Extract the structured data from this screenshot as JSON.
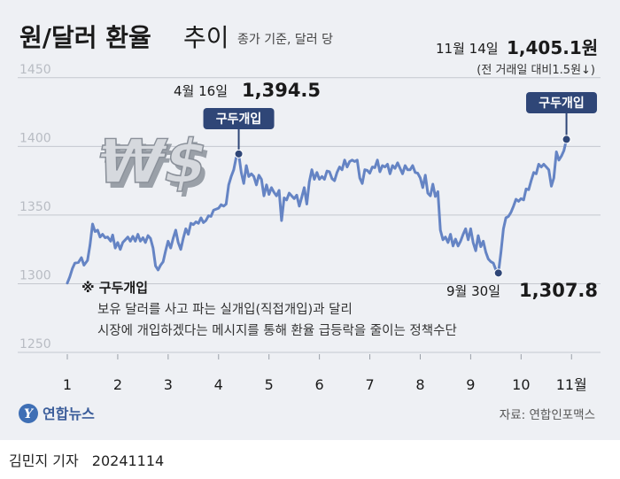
{
  "header": {
    "title": "원/달러 환율",
    "title_light": "추이",
    "subtitle": "종가 기준, 달러 당"
  },
  "chart_data": {
    "type": "line",
    "unit_note": "종가 기준, 달러 당",
    "ylim": [
      1250,
      1455
    ],
    "yticks": [
      1250,
      1300,
      1350,
      1400,
      1450
    ],
    "xticks": [
      {
        "label": "1",
        "x": 1
      },
      {
        "label": "2",
        "x": 2
      },
      {
        "label": "3",
        "x": 3
      },
      {
        "label": "4",
        "x": 4
      },
      {
        "label": "5",
        "x": 5
      },
      {
        "label": "6",
        "x": 6
      },
      {
        "label": "7",
        "x": 7
      },
      {
        "label": "8",
        "x": 8
      },
      {
        "label": "9",
        "x": 9
      },
      {
        "label": "10",
        "x": 10
      },
      {
        "label": "11월",
        "x": 11
      }
    ],
    "xlim": [
      1,
      11.47
    ],
    "grid": true,
    "series": [
      {
        "color": "#6584c4",
        "points": [
          [
            1.0,
            1300.5
          ],
          [
            1.05,
            1305.0
          ],
          [
            1.1,
            1311.0
          ],
          [
            1.15,
            1315.0
          ],
          [
            1.22,
            1315.5
          ],
          [
            1.28,
            1319.0
          ],
          [
            1.33,
            1313.5
          ],
          [
            1.4,
            1317.0
          ],
          [
            1.45,
            1328.0
          ],
          [
            1.5,
            1343.5
          ],
          [
            1.55,
            1338.0
          ],
          [
            1.6,
            1339.0
          ],
          [
            1.65,
            1334.0
          ],
          [
            1.7,
            1336.0
          ],
          [
            1.75,
            1333.5
          ],
          [
            1.8,
            1334.0
          ],
          [
            1.86,
            1331.0
          ],
          [
            1.9,
            1335.5
          ],
          [
            1.95,
            1326.0
          ],
          [
            2.0,
            1330.0
          ],
          [
            2.05,
            1325.0
          ],
          [
            2.1,
            1330.0
          ],
          [
            2.15,
            1332.0
          ],
          [
            2.2,
            1334.0
          ],
          [
            2.25,
            1331.0
          ],
          [
            2.3,
            1334.5
          ],
          [
            2.35,
            1331.0
          ],
          [
            2.4,
            1336.0
          ],
          [
            2.45,
            1331.0
          ],
          [
            2.5,
            1333.5
          ],
          [
            2.55,
            1330.0
          ],
          [
            2.6,
            1335.0
          ],
          [
            2.65,
            1333.0
          ],
          [
            2.7,
            1326.0
          ],
          [
            2.75,
            1313.0
          ],
          [
            2.8,
            1310.0
          ],
          [
            2.85,
            1313.5
          ],
          [
            2.9,
            1316.0
          ],
          [
            2.95,
            1324.0
          ],
          [
            3.0,
            1331.0
          ],
          [
            3.05,
            1326.0
          ],
          [
            3.1,
            1333.0
          ],
          [
            3.15,
            1339.0
          ],
          [
            3.2,
            1330.0
          ],
          [
            3.25,
            1325.0
          ],
          [
            3.3,
            1333.0
          ],
          [
            3.35,
            1340.0
          ],
          [
            3.4,
            1336.0
          ],
          [
            3.45,
            1344.0
          ],
          [
            3.5,
            1343.0
          ],
          [
            3.55,
            1345.0
          ],
          [
            3.6,
            1344.0
          ],
          [
            3.65,
            1348.0
          ],
          [
            3.7,
            1344.5
          ],
          [
            3.75,
            1346.0
          ],
          [
            3.8,
            1349.5
          ],
          [
            3.85,
            1349.0
          ],
          [
            3.9,
            1353.5
          ],
          [
            4.0,
            1355.0
          ],
          [
            4.05,
            1357.5
          ],
          [
            4.1,
            1356.5
          ],
          [
            4.15,
            1358.0
          ],
          [
            4.2,
            1372.0
          ],
          [
            4.25,
            1378.0
          ],
          [
            4.3,
            1383.0
          ],
          [
            4.35,
            1392.0
          ],
          [
            4.4,
            1394.5
          ],
          [
            4.45,
            1381.0
          ],
          [
            4.5,
            1373.0
          ],
          [
            4.55,
            1386.0
          ],
          [
            4.6,
            1378.0
          ],
          [
            4.65,
            1380.0
          ],
          [
            4.7,
            1378.0
          ],
          [
            4.75,
            1372.0
          ],
          [
            4.8,
            1379.0
          ],
          [
            4.85,
            1376.0
          ],
          [
            4.9,
            1364.0
          ],
          [
            4.95,
            1372.0
          ],
          [
            5.0,
            1365.0
          ],
          [
            5.05,
            1370.0
          ],
          [
            5.1,
            1366.5
          ],
          [
            5.15,
            1364.0
          ],
          [
            5.2,
            1368.0
          ],
          [
            5.25,
            1346.0
          ],
          [
            5.3,
            1362.5
          ],
          [
            5.35,
            1361.0
          ],
          [
            5.4,
            1366.0
          ],
          [
            5.45,
            1364.0
          ],
          [
            5.5,
            1362.0
          ],
          [
            5.55,
            1364.5
          ],
          [
            5.6,
            1356.5
          ],
          [
            5.65,
            1363.0
          ],
          [
            5.7,
            1370.0
          ],
          [
            5.75,
            1358.0
          ],
          [
            5.8,
            1374.0
          ],
          [
            5.85,
            1383.0
          ],
          [
            5.9,
            1376.0
          ],
          [
            5.95,
            1381.0
          ],
          [
            6.0,
            1376.0
          ],
          [
            6.05,
            1378.0
          ],
          [
            6.1,
            1376.0
          ],
          [
            6.15,
            1382.0
          ],
          [
            6.2,
            1381.5
          ],
          [
            6.25,
            1376.5
          ],
          [
            6.3,
            1375.0
          ],
          [
            6.35,
            1381.0
          ],
          [
            6.4,
            1385.0
          ],
          [
            6.45,
            1383.0
          ],
          [
            6.5,
            1390.0
          ],
          [
            6.55,
            1385.0
          ],
          [
            6.6,
            1389.0
          ],
          [
            6.65,
            1390.0
          ],
          [
            6.7,
            1389.0
          ],
          [
            6.75,
            1390.0
          ],
          [
            6.8,
            1377.0
          ],
          [
            6.85,
            1373.0
          ],
          [
            6.9,
            1383.0
          ],
          [
            6.95,
            1382.5
          ],
          [
            7.0,
            1380.5
          ],
          [
            7.05,
            1385.0
          ],
          [
            7.1,
            1384.5
          ],
          [
            7.15,
            1390.0
          ],
          [
            7.2,
            1381.5
          ],
          [
            7.25,
            1386.0
          ],
          [
            7.3,
            1385.0
          ],
          [
            7.35,
            1387.0
          ],
          [
            7.4,
            1380.0
          ],
          [
            7.45,
            1386.0
          ],
          [
            7.5,
            1384.0
          ],
          [
            7.55,
            1388.0
          ],
          [
            7.6,
            1384.0
          ],
          [
            7.65,
            1380.0
          ],
          [
            7.7,
            1386.0
          ],
          [
            7.75,
            1383.0
          ],
          [
            7.8,
            1383.0
          ],
          [
            7.85,
            1386.0
          ],
          [
            7.9,
            1381.0
          ],
          [
            7.95,
            1380.5
          ],
          [
            8.0,
            1377.0
          ],
          [
            8.05,
            1370.0
          ],
          [
            8.1,
            1379.0
          ],
          [
            8.15,
            1366.0
          ],
          [
            8.2,
            1364.0
          ],
          [
            8.25,
            1372.5
          ],
          [
            8.3,
            1363.5
          ],
          [
            8.35,
            1367.0
          ],
          [
            8.4,
            1339.0
          ],
          [
            8.45,
            1332.0
          ],
          [
            8.5,
            1334.0
          ],
          [
            8.55,
            1330.0
          ],
          [
            8.6,
            1336.0
          ],
          [
            8.65,
            1327.5
          ],
          [
            8.7,
            1332.5
          ],
          [
            8.75,
            1327.5
          ],
          [
            8.8,
            1331.0
          ],
          [
            8.85,
            1336.0
          ],
          [
            8.9,
            1340.0
          ],
          [
            8.95,
            1332.0
          ],
          [
            9.0,
            1340.0
          ],
          [
            9.05,
            1330.0
          ],
          [
            9.1,
            1324.0
          ],
          [
            9.15,
            1335.0
          ],
          [
            9.2,
            1327.0
          ],
          [
            9.25,
            1331.0
          ],
          [
            9.3,
            1323.0
          ],
          [
            9.35,
            1318.0
          ],
          [
            9.4,
            1316.0
          ],
          [
            9.45,
            1315.0
          ],
          [
            9.5,
            1310.0
          ],
          [
            9.55,
            1307.8
          ],
          [
            9.6,
            1323.0
          ],
          [
            9.65,
            1340.0
          ],
          [
            9.7,
            1348.0
          ],
          [
            9.75,
            1349.0
          ],
          [
            9.8,
            1352.0
          ],
          [
            9.85,
            1356.5
          ],
          [
            9.9,
            1361.5
          ],
          [
            9.95,
            1360.0
          ],
          [
            10.0,
            1362.0
          ],
          [
            10.05,
            1361.0
          ],
          [
            10.1,
            1369.0
          ],
          [
            10.15,
            1368.5
          ],
          [
            10.2,
            1375.0
          ],
          [
            10.25,
            1381.0
          ],
          [
            10.3,
            1380.0
          ],
          [
            10.35,
            1387.0
          ],
          [
            10.4,
            1385.0
          ],
          [
            10.45,
            1387.0
          ],
          [
            10.5,
            1385.0
          ],
          [
            10.55,
            1383.0
          ],
          [
            10.6,
            1371.0
          ],
          [
            10.65,
            1377.0
          ],
          [
            10.7,
            1396.0
          ],
          [
            10.75,
            1390.0
          ],
          [
            10.8,
            1393.0
          ],
          [
            10.85,
            1397.0
          ],
          [
            10.9,
            1405.1
          ]
        ]
      }
    ],
    "highlights": [
      {
        "x": 4.4,
        "y": 1394.5,
        "date": "4월 16일",
        "value": "1,394.5"
      },
      {
        "x": 9.55,
        "y": 1307.8,
        "date": "9월 30일",
        "value": "1,307.8"
      },
      {
        "x": 10.9,
        "y": 1405.1,
        "date": "11월 14일",
        "value": "1,405.1원",
        "note": "(전 거래일 대비1.5원↓)"
      }
    ],
    "badges": [
      {
        "text": "구두개입",
        "x": 4.4
      },
      {
        "text": "구두개입",
        "x": 10.9
      }
    ]
  },
  "footnote": {
    "title": "※ 구두개입",
    "line1": "보유 달러를 사고 파는 실개입(직접개입)과 달리",
    "line2": "시장에 개입하겠다는 메시지를 통해 환율 급등락을 줄이는 정책수단"
  },
  "decoration": {
    "symbol_text": "₩$"
  },
  "brand": {
    "logo_text": "연합뉴스",
    "logo_mark": "Y"
  },
  "source": "자료: 연합인포맥스",
  "byline": {
    "author": "김민지 기자",
    "date": "20241114"
  }
}
